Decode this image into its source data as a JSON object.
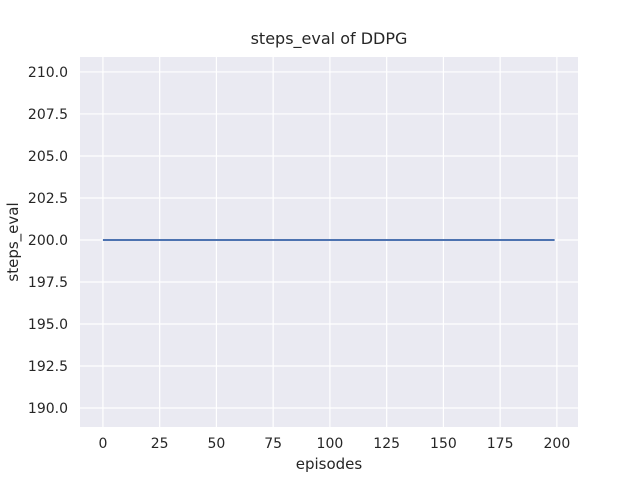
{
  "chart_data": {
    "type": "line",
    "title": "steps_eval of DDPG",
    "xlabel": "episodes",
    "ylabel": "steps_eval",
    "x_ticks": [
      0,
      25,
      50,
      75,
      100,
      125,
      150,
      175,
      200
    ],
    "x_tick_labels": [
      "0",
      "25",
      "50",
      "75",
      "100",
      "125",
      "150",
      "175",
      "200"
    ],
    "y_ticks": [
      190.0,
      192.5,
      195.0,
      197.5,
      200.0,
      202.5,
      205.0,
      207.5,
      210.0
    ],
    "y_tick_labels": [
      "190.0",
      "192.5",
      "195.0",
      "197.5",
      "200.0",
      "202.5",
      "205.0",
      "207.5",
      "210.0"
    ],
    "xlim": [
      -10.1,
      209.3
    ],
    "ylim": [
      188.87,
      210.89
    ],
    "grid": true,
    "legend": "none",
    "style": {
      "figure_background": "#ffffff",
      "axes_background": "#eaeaf2",
      "grid_color": "#ffffff",
      "text_color": "#262626",
      "line_width": 2
    },
    "series": [
      {
        "name": "steps_eval",
        "color": "#4c72b0",
        "x": [
          0,
          199
        ],
        "y": [
          200,
          200
        ]
      }
    ]
  }
}
